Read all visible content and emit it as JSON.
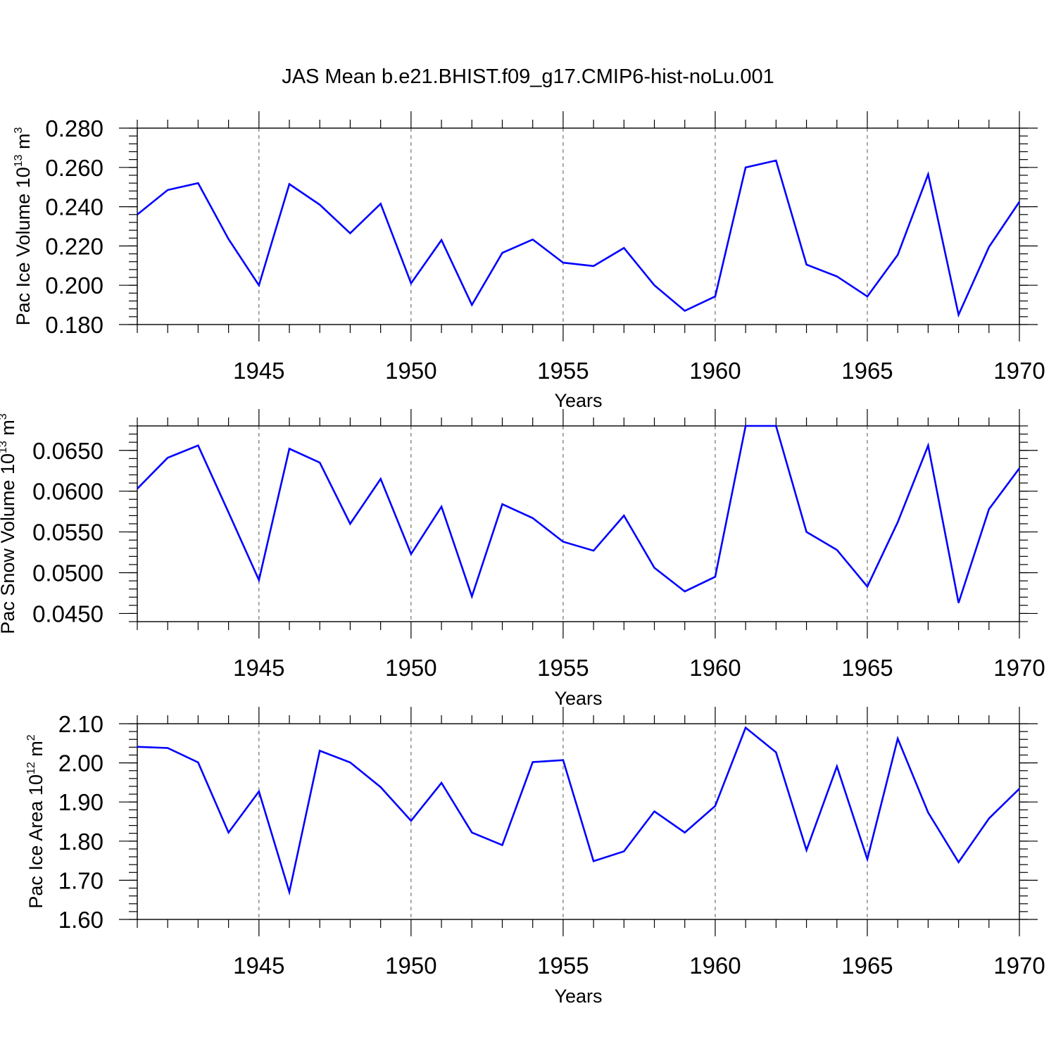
{
  "figure": {
    "title": "JAS Mean b.e21.BHIST.f09_g17.CMIP6-hist-noLu.001"
  },
  "colors": {
    "series": "#0000ff",
    "axis": "#000000",
    "grid": "#555555"
  },
  "chart_data": [
    {
      "type": "line",
      "ylabel_main": "Pac Ice Volume 10",
      "ylabel_sup": "13",
      "ylabel_unit": " m",
      "ylabel_unit_sup": "3",
      "xlabel": "Years",
      "xlim": [
        1941,
        1970
      ],
      "ylim": [
        0.18,
        0.28
      ],
      "yticks": [
        0.18,
        0.2,
        0.22,
        0.24,
        0.26,
        0.28
      ],
      "ytick_labels": [
        "0.180",
        "0.200",
        "0.220",
        "0.240",
        "0.260",
        "0.280"
      ],
      "xticks": [
        1945,
        1950,
        1955,
        1960,
        1965,
        1970
      ],
      "xtick_labels": [
        "1945",
        "1950",
        "1955",
        "1960",
        "1965",
        "1970"
      ],
      "x": [
        1941,
        1942,
        1943,
        1944,
        1945,
        1946,
        1947,
        1948,
        1949,
        1950,
        1951,
        1952,
        1953,
        1954,
        1955,
        1956,
        1957,
        1958,
        1959,
        1960,
        1961,
        1962,
        1963,
        1964,
        1965,
        1966,
        1967,
        1968,
        1969,
        1970
      ],
      "values": [
        0.236,
        0.2485,
        0.252,
        0.2235,
        0.2,
        0.2515,
        0.241,
        0.2265,
        0.2415,
        0.201,
        0.223,
        0.19,
        0.2165,
        0.2233,
        0.2115,
        0.2098,
        0.219,
        0.2,
        0.187,
        0.1943,
        0.26,
        0.2635,
        0.2105,
        0.2045,
        0.1943,
        0.2155,
        0.2565,
        0.185,
        0.2195,
        0.2425
      ]
    },
    {
      "type": "line",
      "ylabel_main": "Pac Snow Volume 10",
      "ylabel_sup": "13",
      "ylabel_unit": " m",
      "ylabel_unit_sup": "3",
      "xlabel": "Years",
      "xlim": [
        1941,
        1970
      ],
      "ylim": [
        0.044,
        0.068
      ],
      "yticks": [
        0.045,
        0.05,
        0.055,
        0.06,
        0.065
      ],
      "ytick_labels": [
        "0.0450",
        "0.0500",
        "0.0550",
        "0.0600",
        "0.0650"
      ],
      "xticks": [
        1945,
        1950,
        1955,
        1960,
        1965,
        1970
      ],
      "xtick_labels": [
        "1945",
        "1950",
        "1955",
        "1960",
        "1965",
        "1970"
      ],
      "x": [
        1941,
        1942,
        1943,
        1944,
        1945,
        1946,
        1947,
        1948,
        1949,
        1950,
        1951,
        1952,
        1953,
        1954,
        1955,
        1956,
        1957,
        1958,
        1959,
        1960,
        1961,
        1962,
        1963,
        1964,
        1965,
        1966,
        1967,
        1968,
        1969,
        1970
      ],
      "values": [
        0.0603,
        0.0641,
        0.0656,
        0.0574,
        0.0491,
        0.0652,
        0.0635,
        0.056,
        0.0615,
        0.0523,
        0.0581,
        0.0471,
        0.0584,
        0.0567,
        0.0538,
        0.0527,
        0.057,
        0.0506,
        0.0477,
        0.0495,
        0.068,
        0.068,
        0.055,
        0.0528,
        0.0483,
        0.0562,
        0.0656,
        0.0463,
        0.0578,
        0.0628
      ]
    },
    {
      "type": "line",
      "ylabel_main": "Pac Ice Area 10",
      "ylabel_sup": "12",
      "ylabel_unit": " m",
      "ylabel_unit_sup": "2",
      "xlabel": "Years",
      "xlim": [
        1941,
        1970
      ],
      "ylim": [
        1.6,
        2.1
      ],
      "yticks": [
        1.6,
        1.7,
        1.8,
        1.9,
        2.0,
        2.1
      ],
      "ytick_labels": [
        "1.60",
        "1.70",
        "1.80",
        "1.90",
        "2.00",
        "2.10"
      ],
      "xticks": [
        1945,
        1950,
        1955,
        1960,
        1965,
        1970
      ],
      "xtick_labels": [
        "1945",
        "1950",
        "1955",
        "1960",
        "1965",
        "1970"
      ],
      "x": [
        1941,
        1942,
        1943,
        1944,
        1945,
        1946,
        1947,
        1948,
        1949,
        1950,
        1951,
        1952,
        1953,
        1954,
        1955,
        1956,
        1957,
        1958,
        1959,
        1960,
        1961,
        1962,
        1963,
        1964,
        1965,
        1966,
        1967,
        1968,
        1969,
        1970
      ],
      "values": [
        2.041,
        2.038,
        2.001,
        1.822,
        1.927,
        1.67,
        2.031,
        2.001,
        1.938,
        1.852,
        1.949,
        1.822,
        1.79,
        2.002,
        2.007,
        1.749,
        1.774,
        1.876,
        1.822,
        1.89,
        2.09,
        2.027,
        1.777,
        1.991,
        1.754,
        2.062,
        1.873,
        1.746,
        1.858,
        1.934
      ]
    }
  ]
}
